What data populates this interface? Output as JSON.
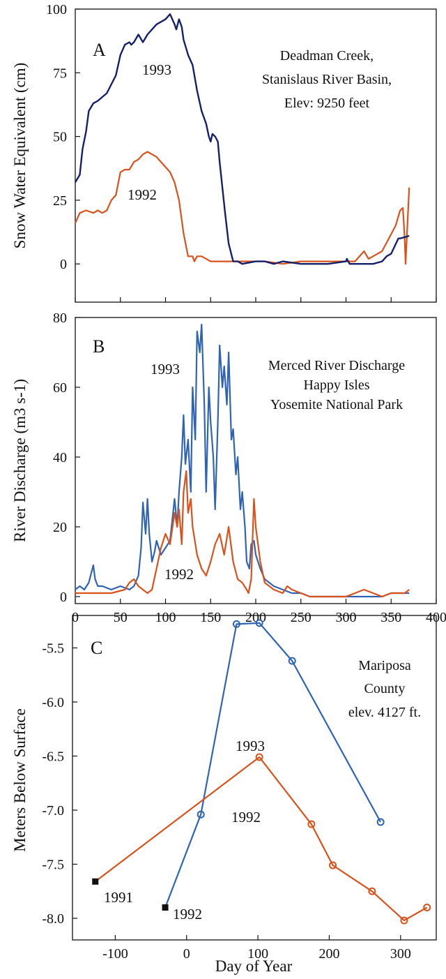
{
  "chart_data": [
    {
      "panel": "A",
      "type": "line",
      "title": "",
      "xlabel": "",
      "ylabel": "Snow Water Equivalent (cm)",
      "xlim": [
        0,
        400
      ],
      "ylim": [
        -15,
        100
      ],
      "yticks": [
        0,
        25,
        50,
        75,
        100
      ],
      "annotation": [
        "Deadman Creek,",
        "Stanislaus River Basin,",
        "Elev: 9250 feet"
      ],
      "grid": false,
      "colors": {
        "1993": "#15206a",
        "1992": "#d9521b"
      },
      "series": [
        {
          "name": "1993",
          "x": [
            0,
            5,
            8,
            12,
            15,
            20,
            25,
            35,
            45,
            50,
            55,
            60,
            62,
            65,
            70,
            75,
            80,
            85,
            90,
            95,
            100,
            105,
            110,
            112,
            115,
            118,
            120,
            125,
            130,
            135,
            140,
            145,
            148,
            150,
            152,
            155,
            158,
            160,
            163,
            166,
            170,
            175,
            180,
            185,
            200,
            210,
            220,
            230,
            250,
            280,
            300,
            301,
            304,
            320,
            330,
            340,
            345,
            350,
            358,
            360,
            370
          ],
          "y": [
            32,
            35,
            45,
            52,
            60,
            63,
            64,
            67,
            74,
            82,
            86,
            87,
            86,
            87,
            90,
            87,
            90,
            92,
            94,
            95,
            96,
            98,
            94,
            92,
            96,
            93,
            88,
            82,
            78,
            68,
            60,
            55,
            50,
            48,
            51,
            50,
            48,
            40,
            30,
            20,
            8,
            1,
            1,
            0,
            1,
            1,
            0,
            1,
            0,
            0,
            1,
            2,
            0,
            0,
            0,
            1,
            3,
            4,
            10,
            10,
            11
          ]
        },
        {
          "name": "1992",
          "x": [
            0,
            5,
            12,
            20,
            25,
            30,
            35,
            40,
            45,
            50,
            55,
            60,
            65,
            70,
            75,
            80,
            85,
            90,
            95,
            100,
            105,
            110,
            115,
            120,
            125,
            130,
            132,
            135,
            140,
            145,
            150,
            160,
            170,
            180,
            190,
            200,
            210,
            230,
            250,
            270,
            290,
            310,
            320,
            325,
            330,
            340,
            355,
            360,
            363,
            365,
            366,
            370
          ],
          "y": [
            16,
            20,
            21,
            20,
            21,
            20,
            21,
            25,
            27,
            36,
            37,
            37,
            40,
            41,
            43,
            44,
            43,
            42,
            40,
            38,
            36,
            32,
            25,
            12,
            3,
            3,
            1,
            3,
            3,
            2,
            1,
            1,
            1,
            1,
            1,
            1,
            1,
            0,
            1,
            1,
            1,
            1,
            5,
            2,
            3,
            5,
            15,
            21,
            22,
            10,
            0,
            30
          ]
        }
      ]
    },
    {
      "panel": "B",
      "type": "line",
      "title": "",
      "xlabel": "",
      "ylabel": "River Discharge (m3 s-1)",
      "xlim": [
        0,
        400
      ],
      "ylim": [
        -2,
        80
      ],
      "xticks": [
        0,
        50,
        100,
        150,
        200,
        250,
        300,
        350,
        400
      ],
      "yticks": [
        0,
        20,
        40,
        60,
        80
      ],
      "annotation": [
        "Merced River Discharge",
        "Happy Isles",
        "Yosemite National Park"
      ],
      "grid": false,
      "colors": {
        "1993": "#2f63b5",
        "1992": "#d9521b"
      },
      "series": [
        {
          "name": "1993",
          "x": [
            0,
            5,
            10,
            15,
            20,
            22,
            25,
            30,
            40,
            50,
            60,
            65,
            70,
            73,
            75,
            78,
            80,
            82,
            85,
            88,
            90,
            95,
            100,
            105,
            110,
            113,
            115,
            118,
            120,
            122,
            125,
            128,
            130,
            133,
            135,
            138,
            140,
            143,
            145,
            148,
            150,
            153,
            155,
            158,
            160,
            163,
            165,
            168,
            170,
            173,
            175,
            178,
            180,
            183,
            185,
            188,
            190,
            193,
            195,
            198,
            200,
            205,
            210,
            215,
            220,
            230,
            240,
            250,
            260,
            270,
            280,
            300,
            320,
            340,
            350,
            370
          ],
          "y": [
            2,
            3,
            2,
            4,
            9,
            5,
            3,
            3,
            2,
            3,
            2,
            3,
            6,
            14,
            27,
            18,
            28,
            18,
            10,
            13,
            16,
            12,
            14,
            16,
            28,
            20,
            30,
            40,
            52,
            38,
            45,
            30,
            60,
            45,
            76,
            70,
            78,
            55,
            30,
            60,
            50,
            40,
            25,
            50,
            72,
            60,
            66,
            55,
            70,
            45,
            48,
            35,
            40,
            25,
            30,
            20,
            10,
            8,
            15,
            16,
            12,
            8,
            5,
            4,
            3,
            2,
            1,
            1,
            0,
            0,
            0,
            0,
            0,
            0,
            1,
            1
          ]
        },
        {
          "name": "1992",
          "x": [
            0,
            20,
            40,
            55,
            60,
            65,
            70,
            75,
            80,
            85,
            90,
            95,
            100,
            105,
            110,
            113,
            115,
            118,
            120,
            123,
            125,
            128,
            130,
            135,
            140,
            145,
            150,
            155,
            160,
            165,
            170,
            175,
            180,
            185,
            190,
            192,
            195,
            198,
            200,
            205,
            210,
            220,
            230,
            235,
            240,
            260,
            280,
            300,
            310,
            320,
            330,
            340,
            350,
            365,
            370
          ],
          "y": [
            1,
            1,
            1,
            2,
            4,
            5,
            3,
            2,
            1,
            2,
            8,
            14,
            18,
            15,
            24,
            20,
            25,
            15,
            30,
            36,
            24,
            28,
            20,
            12,
            8,
            6,
            10,
            15,
            18,
            12,
            20,
            10,
            5,
            4,
            2,
            1,
            5,
            28,
            20,
            10,
            4,
            2,
            1,
            3,
            2,
            0,
            0,
            0,
            1,
            2,
            1,
            0,
            1,
            1,
            2
          ]
        }
      ]
    },
    {
      "panel": "C",
      "type": "line",
      "title": "",
      "xlabel": "Day of Year",
      "ylabel": "Meters Below Surface",
      "xlim": [
        -160,
        350
      ],
      "ylim": [
        -8.2,
        -5.2
      ],
      "xticks": [
        -100,
        0,
        100,
        200,
        300
      ],
      "yticks": [
        -5.5,
        -6.0,
        -6.5,
        -7.0,
        -7.5,
        -8.0
      ],
      "annotation": [
        "Mariposa",
        "County",
        "elev. 4127 ft."
      ],
      "grid": false,
      "colors": {
        "1993": "#2f63b5",
        "1992": "#d9521b",
        "marker_square": "#111111"
      },
      "series": [
        {
          "name": "1993",
          "x": [
            -30,
            20,
            70,
            102,
            148,
            272
          ],
          "y": [
            -7.9,
            -7.04,
            -5.28,
            -5.27,
            -5.62,
            -7.11
          ],
          "first_point_marker": "square"
        },
        {
          "name": "1992",
          "x": [
            -128,
            102,
            175,
            205,
            260,
            305,
            337
          ],
          "y": [
            -7.66,
            -6.51,
            -7.13,
            -7.51,
            -7.75,
            -8.02,
            -7.9
          ],
          "first_point_marker": "square"
        }
      ],
      "square_labels": [
        "1991",
        "1992"
      ]
    }
  ]
}
